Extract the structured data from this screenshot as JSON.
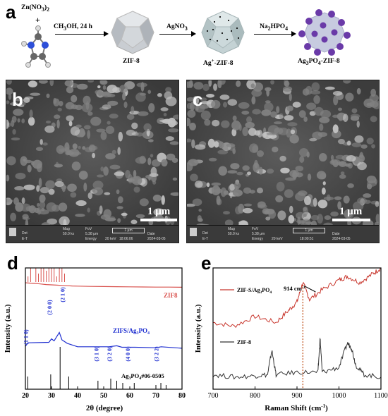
{
  "panel_a": {
    "letter": "a",
    "reagent_top": "Zn(NO",
    "reagent_top_sub": "3",
    "reagent_top_end": ")",
    "reagent_top_sub2": "2",
    "plus": "+",
    "step1": "CH",
    "step1_sub": "3",
    "step1_end": "OH, 24 h",
    "step2": "AgNO",
    "step2_sub": "3",
    "step3": "Na",
    "step3_sub": "2",
    "step3_end": "HPO",
    "step3_sub2": "4",
    "product1": "ZIF-8",
    "product2_pre": "Ag",
    "product2_sup": "+",
    "product2_end": "-ZIF-8",
    "product3_pre": "Ag",
    "product3_sub": "3",
    "product3_mid": "PO",
    "product3_sub2": "4",
    "product3_end": "-ZIF-8"
  },
  "panel_b": {
    "letter": "b",
    "scale": "1 μm",
    "footer": {
      "col1_head": "Det",
      "col1_val": "E-T",
      "col2_head": "Mag",
      "col2_val": "50.0 kx",
      "col3_head": "FoV",
      "col3_val": "5.38 μm",
      "col4_head": "Energy",
      "col4_val": "20 keV",
      "col5_head": "Time",
      "col5_val": "18:06:06",
      "col6_head": "Date",
      "col6_val": "2024-03-05",
      "bar_label": "1 μm"
    }
  },
  "panel_c": {
    "letter": "c",
    "scale": "1 μm",
    "footer": {
      "col1_head": "Det",
      "col1_val": "E-T",
      "col2_head": "Mag",
      "col2_val": "50.0 kx",
      "col3_head": "FoV",
      "col3_val": "5.38 μm",
      "col4_head": "Energy",
      "col4_val": "20 keV",
      "col5_head": "Time",
      "col5_val": "18:00:51",
      "col6_head": "Date",
      "col6_val": "2024-03-05",
      "bar_label": "1 μm"
    }
  },
  "panel_d": {
    "letter": "d",
    "ylabel": "Intensity (a.u.)",
    "xlabel": "2θ (degree)",
    "label_zif8": "ZIF8",
    "label_composite_pre": "ZIFS/Ag",
    "label_composite_sub": "3",
    "label_composite_mid": "PO",
    "label_composite_sub2": "4",
    "label_ref_pre": "Ag",
    "label_ref_sub": "3",
    "label_ref_mid": "PO",
    "label_ref_sub2": "4",
    "label_ref_end": "#06-0505",
    "peak_labels": [
      "(1 1 0)",
      "(2 0 0)",
      "(2 1 0)",
      "(3 1 0)",
      "(3 2 0)",
      "(4 0 0)",
      "(3 2 2)"
    ],
    "xticks": [
      "20",
      "30",
      "40",
      "50",
      "60",
      "70",
      "80"
    ],
    "colors": {
      "zif8": "#d9534f",
      "composite": "#1f2fd0",
      "reference": "#000000"
    }
  },
  "panel_e": {
    "letter": "e",
    "ylabel": "Intensity (a.u.)",
    "xlabel": "Raman Shift (cm",
    "xlabel_sup": "-1",
    "xlabel_end": ")",
    "label_peak": "914 cm",
    "label_peak_sup": "-1",
    "legend_composite_pre": "ZIF-S/Ag",
    "legend_composite_sub": "3",
    "legend_composite_mid": "PO",
    "legend_composite_sub2": "4",
    "legend_zif8": "ZIF-8",
    "xticks": [
      "700",
      "800",
      "900",
      "1000",
      "1100"
    ],
    "colors": {
      "composite": "#c8362d",
      "zif8": "#333333",
      "marker": "#c0501a"
    }
  },
  "chart_data": [
    {
      "type": "line",
      "panel": "d",
      "xlabel": "2θ (degree)",
      "ylabel": "Intensity (a.u.)",
      "xlim": [
        20,
        80
      ],
      "grid": false,
      "series": [
        {
          "name": "ZIF8",
          "x": [
            20,
            22,
            24,
            26,
            28,
            30,
            32,
            34,
            36,
            38,
            40,
            45,
            50,
            55,
            60,
            65,
            70,
            75,
            80
          ],
          "y": [
            0.95,
            0.92,
            0.9,
            0.86,
            0.82,
            0.8,
            0.78,
            0.76,
            0.74,
            0.72,
            0.71,
            0.69,
            0.68,
            0.67,
            0.66,
            0.65,
            0.64,
            0.64,
            0.63
          ]
        },
        {
          "name": "ZIFS/Ag3PO4",
          "x": [
            20,
            21,
            29,
            30,
            31,
            33,
            34,
            36,
            40,
            47,
            52,
            55,
            57,
            62,
            70,
            72,
            80
          ],
          "y": [
            0.27,
            0.34,
            0.35,
            0.42,
            0.38,
            0.55,
            0.4,
            0.33,
            0.26,
            0.26,
            0.26,
            0.28,
            0.25,
            0.25,
            0.24,
            0.26,
            0.23
          ]
        },
        {
          "name": "Ag3PO4 #06-0505",
          "x": [
            20.9,
            29.7,
            33.3,
            36.6,
            47.8,
            52.7,
            55.0,
            57.3,
            61.7,
            70.0,
            71.9,
            73.9
          ],
          "y": [
            0.3,
            0.35,
            1.0,
            0.3,
            0.2,
            0.25,
            0.2,
            0.15,
            0.15,
            0.1,
            0.15,
            0.1
          ]
        }
      ]
    },
    {
      "type": "line",
      "panel": "e",
      "xlabel": "Raman Shift (cm-1)",
      "ylabel": "Intensity (a.u.)",
      "xlim": [
        700,
        1100
      ],
      "grid": false,
      "annotations": [
        "914 cm-1"
      ],
      "series": [
        {
          "name": "ZIF-S/Ag3PO4",
          "x": [
            700,
            750,
            800,
            850,
            880,
            900,
            914,
            930,
            960,
            1000,
            1020,
            1050,
            1080,
            1100
          ],
          "y": [
            0.55,
            0.52,
            0.6,
            0.55,
            0.65,
            0.72,
            0.88,
            0.74,
            0.82,
            0.9,
            0.93,
            0.88,
            0.95,
            1.0
          ]
        },
        {
          "name": "ZIF-8",
          "x": [
            700,
            750,
            800,
            830,
            840,
            850,
            900,
            950,
            955,
            960,
            1000,
            1020,
            1030,
            1040,
            1060,
            1100
          ],
          "y": [
            0.12,
            0.1,
            0.11,
            0.12,
            0.32,
            0.12,
            0.14,
            0.14,
            0.42,
            0.14,
            0.18,
            0.38,
            0.34,
            0.2,
            0.12,
            0.1
          ]
        }
      ]
    }
  ]
}
